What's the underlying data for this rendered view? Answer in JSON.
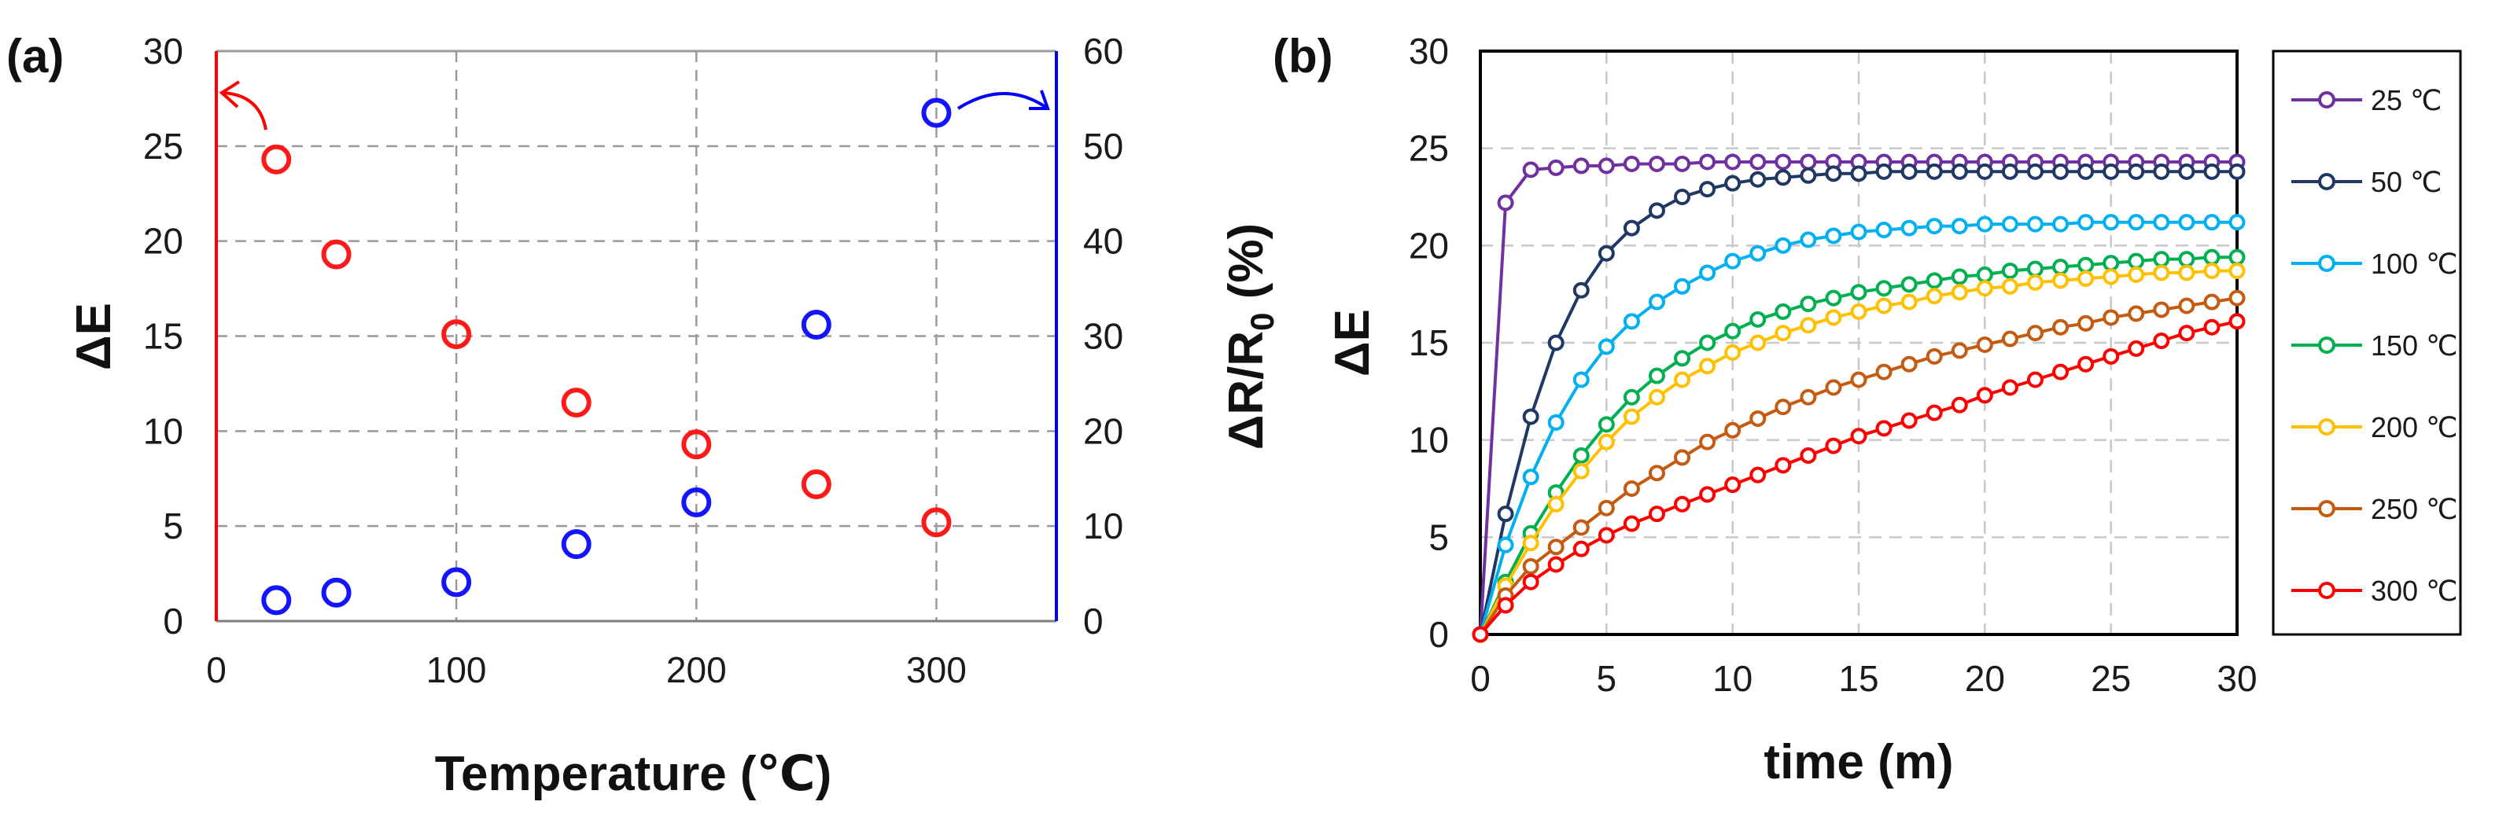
{
  "chart_data": [
    {
      "panel": "(a)",
      "type": "scatter",
      "xlabel": "Temperature (℃)",
      "ylabel_left": "ΔE",
      "ylabel_right_parts": [
        "ΔR/R",
        "0",
        " (%)"
      ],
      "xlim": [
        0,
        350
      ],
      "ylim_left": [
        0,
        30
      ],
      "ylim_right": [
        0,
        60
      ],
      "xticks": [
        0,
        100,
        200,
        300
      ],
      "yticks_left": [
        0,
        5,
        10,
        15,
        20,
        25,
        30
      ],
      "yticks_right": [
        0,
        10,
        20,
        30,
        40,
        50,
        60
      ],
      "grid": true,
      "colors": {
        "left_axis": "#ff0000",
        "right_axis": "#0000ff"
      },
      "series": [
        {
          "name": "ΔE",
          "axis": "left",
          "color": "#ff1a1a",
          "x": [
            25,
            50,
            100,
            150,
            200,
            250,
            300
          ],
          "y": [
            24.3,
            19.3,
            15.1,
            11.5,
            9.3,
            7.2,
            5.2
          ]
        },
        {
          "name": "ΔR/R0",
          "axis": "right",
          "color": "#1414ff",
          "x": [
            25,
            50,
            100,
            150,
            200,
            250,
            300
          ],
          "y": [
            2.2,
            3.0,
            4.1,
            8.1,
            12.5,
            31.2,
            53.5
          ]
        }
      ]
    },
    {
      "panel": "(b)",
      "type": "line",
      "xlabel": "time (m)",
      "ylabel": "ΔE",
      "xlim": [
        0,
        30
      ],
      "ylim": [
        0,
        30
      ],
      "xticks": [
        0,
        5,
        10,
        15,
        20,
        25,
        30
      ],
      "yticks": [
        0,
        5,
        10,
        15,
        20,
        25,
        30
      ],
      "grid": true,
      "legend": "right",
      "x": [
        0,
        1,
        2,
        3,
        4,
        5,
        6,
        7,
        8,
        9,
        10,
        11,
        12,
        13,
        14,
        15,
        16,
        17,
        18,
        19,
        20,
        21,
        22,
        23,
        24,
        25,
        26,
        27,
        28,
        29,
        30
      ],
      "series": [
        {
          "name": "25 ℃",
          "color": "#7030a0",
          "values": [
            0,
            22.2,
            23.9,
            24.0,
            24.1,
            24.1,
            24.2,
            24.2,
            24.2,
            24.3,
            24.3,
            24.3,
            24.3,
            24.3,
            24.3,
            24.3,
            24.3,
            24.3,
            24.3,
            24.3,
            24.3,
            24.3,
            24.3,
            24.3,
            24.3,
            24.3,
            24.3,
            24.3,
            24.3,
            24.3,
            24.3
          ]
        },
        {
          "name": "50 ℃",
          "color": "#1f3864",
          "values": [
            0,
            6.2,
            11.2,
            15.0,
            17.7,
            19.6,
            20.9,
            21.8,
            22.5,
            22.9,
            23.2,
            23.4,
            23.5,
            23.6,
            23.7,
            23.7,
            23.8,
            23.8,
            23.8,
            23.8,
            23.8,
            23.8,
            23.8,
            23.8,
            23.8,
            23.8,
            23.8,
            23.8,
            23.8,
            23.8,
            23.8
          ]
        },
        {
          "name": "100 ℃",
          "color": "#00b0f0",
          "values": [
            0,
            4.6,
            8.1,
            10.9,
            13.1,
            14.8,
            16.1,
            17.1,
            17.9,
            18.6,
            19.2,
            19.6,
            20.0,
            20.3,
            20.5,
            20.7,
            20.8,
            20.9,
            21.0,
            21.0,
            21.1,
            21.1,
            21.1,
            21.1,
            21.2,
            21.2,
            21.2,
            21.2,
            21.2,
            21.2,
            21.2
          ]
        },
        {
          "name": "150 ℃",
          "color": "#00b050",
          "values": [
            0,
            2.7,
            5.2,
            7.3,
            9.2,
            10.8,
            12.2,
            13.3,
            14.2,
            15.0,
            15.6,
            16.2,
            16.6,
            17.0,
            17.3,
            17.6,
            17.8,
            18.0,
            18.2,
            18.4,
            18.5,
            18.7,
            18.8,
            18.9,
            19.0,
            19.1,
            19.2,
            19.3,
            19.3,
            19.4,
            19.4
          ]
        },
        {
          "name": "200 ℃",
          "color": "#ffc000",
          "values": [
            0,
            2.5,
            4.7,
            6.7,
            8.4,
            9.9,
            11.2,
            12.2,
            13.1,
            13.8,
            14.5,
            15.0,
            15.5,
            15.9,
            16.3,
            16.6,
            16.9,
            17.1,
            17.4,
            17.6,
            17.8,
            17.9,
            18.1,
            18.2,
            18.3,
            18.4,
            18.5,
            18.6,
            18.6,
            18.7,
            18.7
          ]
        },
        {
          "name": "250 ℃",
          "color": "#c55a11",
          "values": [
            0,
            2.0,
            3.5,
            4.5,
            5.5,
            6.5,
            7.5,
            8.3,
            9.1,
            9.9,
            10.5,
            11.1,
            11.7,
            12.2,
            12.7,
            13.1,
            13.5,
            13.9,
            14.3,
            14.6,
            14.9,
            15.2,
            15.5,
            15.8,
            16.0,
            16.3,
            16.5,
            16.7,
            16.9,
            17.1,
            17.3
          ]
        },
        {
          "name": "300 ℃",
          "color": "#ff0000",
          "values": [
            0,
            1.5,
            2.7,
            3.6,
            4.4,
            5.1,
            5.7,
            6.2,
            6.7,
            7.2,
            7.7,
            8.2,
            8.7,
            9.2,
            9.7,
            10.2,
            10.6,
            11.0,
            11.4,
            11.8,
            12.3,
            12.7,
            13.1,
            13.5,
            13.9,
            14.3,
            14.7,
            15.1,
            15.5,
            15.8,
            16.1
          ]
        }
      ]
    }
  ]
}
